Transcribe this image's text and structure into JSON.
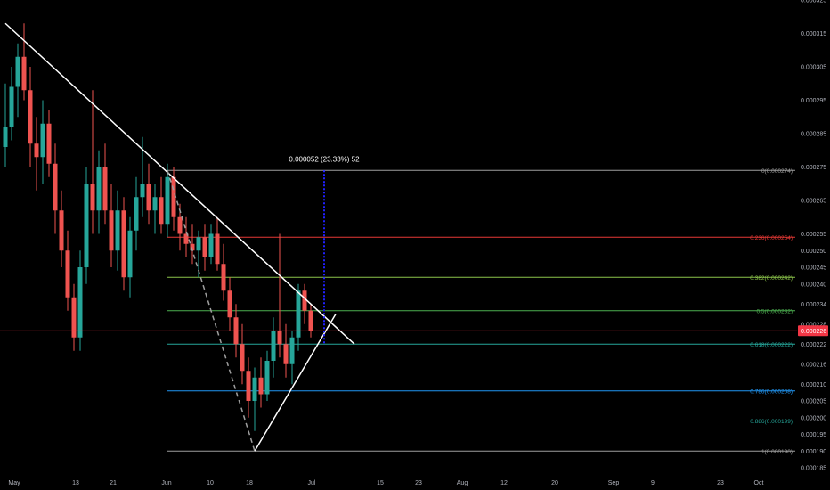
{
  "chart_data": {
    "type": "candlestick",
    "y_range": [
      0.000185,
      0.000325
    ],
    "x_ticks": [
      "May",
      "13",
      "21",
      "Jun",
      "10",
      "18",
      "Jul",
      "15",
      "23",
      "Aug",
      "12",
      "20",
      "Sep",
      "9",
      "23",
      "Oct"
    ],
    "y_ticks": [
      "0.000325",
      "0.000315",
      "0.000305",
      "0.000295",
      "0.000285",
      "0.000275",
      "0.000265",
      "0.000255",
      "0.000250",
      "0.000245",
      "0.000240",
      "0.000234",
      "0.000228",
      "0.000222",
      "0.000216",
      "0.000210",
      "0.000205",
      "0.000200",
      "0.000195",
      "0.000190",
      "0.000185"
    ],
    "current_price": {
      "label": "0.000226",
      "value": 0.000226,
      "color": "#f23645"
    },
    "measure": {
      "label": "0.000052 (23.33%) 52",
      "from": 0.000222,
      "to": 0.000274,
      "color": "#2020ff"
    },
    "fib_levels": [
      {
        "label": "0(0.000274)",
        "value": 0.000274,
        "color": "#9e9e9e"
      },
      {
        "label": "0.236(0.000254)",
        "value": 0.000254,
        "color": "#e53935"
      },
      {
        "label": "0.382(0.000242)",
        "value": 0.000242,
        "color": "#8bc34a"
      },
      {
        "label": "0.5(0.000232)",
        "value": 0.000232,
        "color": "#4caf50"
      },
      {
        "label": "0.618(0.000222)",
        "value": 0.000222,
        "color": "#26a69a"
      },
      {
        "label": "0.786(0.000208)",
        "value": 0.000208,
        "color": "#2196f3"
      },
      {
        "label": "0.886(0.000199)",
        "value": 0.000199,
        "color": "#26a69a"
      },
      {
        "label": "1(0.000190)",
        "value": 0.00019,
        "color": "#9e9e9e"
      }
    ],
    "trendlines": [
      {
        "name": "descending-trendline",
        "from": [
          0,
          0.000318
        ],
        "to": [
          56,
          0.000222
        ],
        "color": "#ffffff",
        "dash": false
      },
      {
        "name": "ascending-trendline",
        "from": [
          40,
          0.00019
        ],
        "to": [
          53,
          0.000231
        ],
        "color": "#ffffff",
        "dash": false
      },
      {
        "name": "fib-anchor-dashed",
        "from": [
          26,
          0.000274
        ],
        "to": [
          40,
          0.00019
        ],
        "color": "#9e9e9e",
        "dash": true
      }
    ],
    "candles": [
      {
        "o": 0.000281,
        "h": 0.0003,
        "l": 0.000275,
        "c": 0.000287
      },
      {
        "o": 0.000287,
        "h": 0.000305,
        "l": 0.000283,
        "c": 0.000299
      },
      {
        "o": 0.000299,
        "h": 0.000312,
        "l": 0.00029,
        "c": 0.000308
      },
      {
        "o": 0.000308,
        "h": 0.000318,
        "l": 0.000295,
        "c": 0.000298
      },
      {
        "o": 0.000298,
        "h": 0.000305,
        "l": 0.000275,
        "c": 0.000282
      },
      {
        "o": 0.000282,
        "h": 0.00029,
        "l": 0.000268,
        "c": 0.000278
      },
      {
        "o": 0.000278,
        "h": 0.000295,
        "l": 0.00027,
        "c": 0.000288
      },
      {
        "o": 0.000288,
        "h": 0.000292,
        "l": 0.000272,
        "c": 0.000276
      },
      {
        "o": 0.000276,
        "h": 0.000282,
        "l": 0.000255,
        "c": 0.000262
      },
      {
        "o": 0.000262,
        "h": 0.000268,
        "l": 0.000245,
        "c": 0.00025
      },
      {
        "o": 0.00025,
        "h": 0.000256,
        "l": 0.000232,
        "c": 0.000236
      },
      {
        "o": 0.000236,
        "h": 0.00024,
        "l": 0.00022,
        "c": 0.000224
      },
      {
        "o": 0.000224,
        "h": 0.00025,
        "l": 0.00022,
        "c": 0.000245
      },
      {
        "o": 0.000245,
        "h": 0.000275,
        "l": 0.00024,
        "c": 0.00027
      },
      {
        "o": 0.00027,
        "h": 0.000298,
        "l": 0.000255,
        "c": 0.000262
      },
      {
        "o": 0.000262,
        "h": 0.00028,
        "l": 0.000255,
        "c": 0.000275
      },
      {
        "o": 0.000275,
        "h": 0.000282,
        "l": 0.000258,
        "c": 0.000262
      },
      {
        "o": 0.000262,
        "h": 0.00027,
        "l": 0.000245,
        "c": 0.00025
      },
      {
        "o": 0.00025,
        "h": 0.000268,
        "l": 0.000244,
        "c": 0.000262
      },
      {
        "o": 0.000262,
        "h": 0.000266,
        "l": 0.000238,
        "c": 0.000242
      },
      {
        "o": 0.000242,
        "h": 0.00026,
        "l": 0.000236,
        "c": 0.000256
      },
      {
        "o": 0.000256,
        "h": 0.000272,
        "l": 0.00025,
        "c": 0.000266
      },
      {
        "o": 0.000266,
        "h": 0.000284,
        "l": 0.00026,
        "c": 0.00027
      },
      {
        "o": 0.00027,
        "h": 0.000276,
        "l": 0.000258,
        "c": 0.000262
      },
      {
        "o": 0.000262,
        "h": 0.00027,
        "l": 0.000255,
        "c": 0.000266
      },
      {
        "o": 0.000266,
        "h": 0.000272,
        "l": 0.000255,
        "c": 0.000258
      },
      {
        "o": 0.000258,
        "h": 0.000276,
        "l": 0.000254,
        "c": 0.000272
      },
      {
        "o": 0.000272,
        "h": 0.000275,
        "l": 0.000256,
        "c": 0.00026
      },
      {
        "o": 0.00026,
        "h": 0.000264,
        "l": 0.00025,
        "c": 0.000255
      },
      {
        "o": 0.000255,
        "h": 0.00026,
        "l": 0.000248,
        "c": 0.000252
      },
      {
        "o": 0.000252,
        "h": 0.000258,
        "l": 0.000246,
        "c": 0.00025
      },
      {
        "o": 0.00025,
        "h": 0.000256,
        "l": 0.000242,
        "c": 0.000254
      },
      {
        "o": 0.000254,
        "h": 0.000258,
        "l": 0.000244,
        "c": 0.000248
      },
      {
        "o": 0.000248,
        "h": 0.000258,
        "l": 0.000246,
        "c": 0.000255
      },
      {
        "o": 0.000255,
        "h": 0.00026,
        "l": 0.000244,
        "c": 0.000246
      },
      {
        "o": 0.000246,
        "h": 0.000252,
        "l": 0.000235,
        "c": 0.000238
      },
      {
        "o": 0.000238,
        "h": 0.000242,
        "l": 0.000226,
        "c": 0.00023
      },
      {
        "o": 0.00023,
        "h": 0.000234,
        "l": 0.000218,
        "c": 0.000222
      },
      {
        "o": 0.000222,
        "h": 0.000228,
        "l": 0.00021,
        "c": 0.000214
      },
      {
        "o": 0.000214,
        "h": 0.000218,
        "l": 0.0002,
        "c": 0.000205
      },
      {
        "o": 0.000205,
        "h": 0.000215,
        "l": 0.000196,
        "c": 0.000212
      },
      {
        "o": 0.000212,
        "h": 0.000218,
        "l": 0.000203,
        "c": 0.000207
      },
      {
        "o": 0.000207,
        "h": 0.00022,
        "l": 0.000205,
        "c": 0.000217
      },
      {
        "o": 0.000217,
        "h": 0.00023,
        "l": 0.000212,
        "c": 0.000226
      },
      {
        "o": 0.000226,
        "h": 0.000255,
        "l": 0.000218,
        "c": 0.000222
      },
      {
        "o": 0.000222,
        "h": 0.000228,
        "l": 0.000212,
        "c": 0.000216
      },
      {
        "o": 0.000216,
        "h": 0.000226,
        "l": 0.00021,
        "c": 0.000224
      },
      {
        "o": 0.000224,
        "h": 0.00024,
        "l": 0.00022,
        "c": 0.000238
      },
      {
        "o": 0.000238,
        "h": 0.00024,
        "l": 0.000228,
        "c": 0.000232
      },
      {
        "o": 0.000232,
        "h": 0.000234,
        "l": 0.000224,
        "c": 0.000226
      }
    ]
  }
}
